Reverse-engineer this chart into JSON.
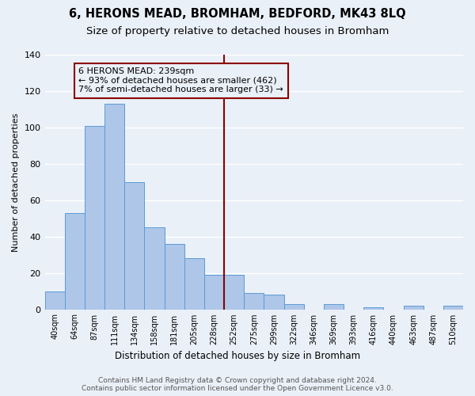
{
  "title": "6, HERONS MEAD, BROMHAM, BEDFORD, MK43 8LQ",
  "subtitle": "Size of property relative to detached houses in Bromham",
  "xlabel": "Distribution of detached houses by size in Bromham",
  "ylabel": "Number of detached properties",
  "bar_labels": [
    "40sqm",
    "64sqm",
    "87sqm",
    "111sqm",
    "134sqm",
    "158sqm",
    "181sqm",
    "205sqm",
    "228sqm",
    "252sqm",
    "275sqm",
    "299sqm",
    "322sqm",
    "346sqm",
    "369sqm",
    "393sqm",
    "416sqm",
    "440sqm",
    "463sqm",
    "487sqm",
    "510sqm"
  ],
  "bar_values": [
    10,
    53,
    101,
    113,
    70,
    45,
    36,
    28,
    19,
    19,
    9,
    8,
    3,
    0,
    3,
    0,
    1,
    0,
    2,
    0,
    2
  ],
  "bar_color": "#aec6e8",
  "bar_edge_color": "#5b9bd5",
  "vline_x_index": 8.5,
  "vline_color": "#8b0000",
  "annotation_text": "6 HERONS MEAD: 239sqm\n← 93% of detached houses are smaller (462)\n7% of semi-detached houses are larger (33) →",
  "annotation_box_color": "#8b0000",
  "ylim": [
    0,
    140
  ],
  "yticks": [
    0,
    20,
    40,
    60,
    80,
    100,
    120,
    140
  ],
  "bg_color": "#eaf0f8",
  "grid_color": "#ffffff",
  "footer": "Contains HM Land Registry data © Crown copyright and database right 2024.\nContains public sector information licensed under the Open Government Licence v3.0.",
  "title_fontsize": 10.5,
  "subtitle_fontsize": 9.5,
  "annotation_fontsize": 8,
  "footer_fontsize": 6.5,
  "ylabel_fontsize": 8,
  "xlabel_fontsize": 8.5,
  "ytick_fontsize": 8,
  "xtick_fontsize": 7
}
